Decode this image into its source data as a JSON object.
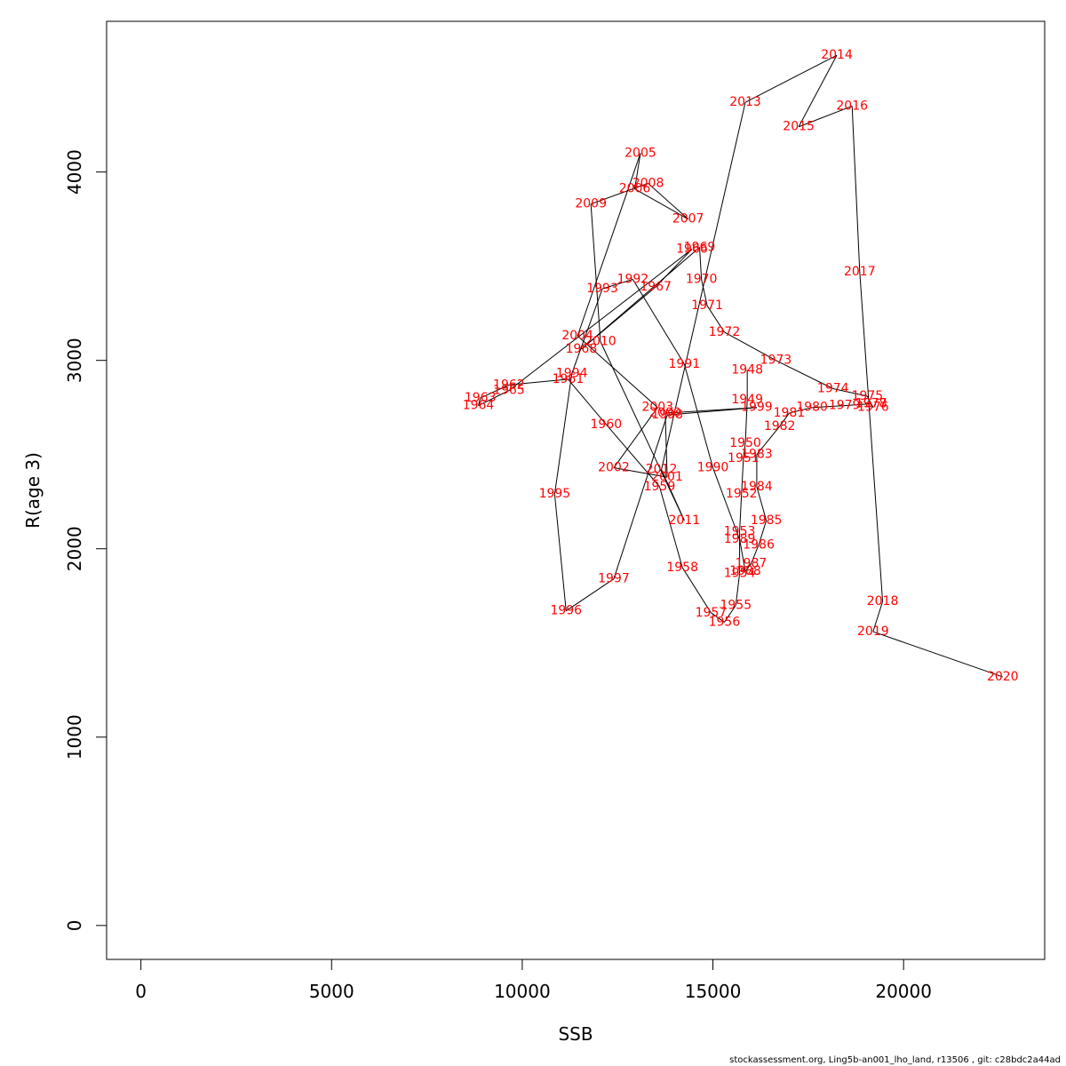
{
  "chart_data": {
    "type": "line",
    "xlabel": "SSB",
    "ylabel": "R(age 3)",
    "xlim": [
      -900,
      23700
    ],
    "ylim": [
      -180,
      4800
    ],
    "x_ticks": [
      0,
      5000,
      10000,
      15000,
      20000
    ],
    "x_tick_labels": [
      "0",
      "5000",
      "10000",
      "15000",
      "20000"
    ],
    "y_ticks": [
      0,
      1000,
      2000,
      3000,
      4000
    ],
    "y_tick_labels": [
      "0",
      "1000",
      "2000",
      "3000",
      "4000"
    ],
    "grid": false,
    "label_color": "#ff0000",
    "line_color": "#000000",
    "points": [
      {
        "year": "1948",
        "x": 15900,
        "y": 2950
      },
      {
        "year": "1949",
        "x": 15900,
        "y": 2790
      },
      {
        "year": "1950",
        "x": 15850,
        "y": 2560
      },
      {
        "year": "1951",
        "x": 15800,
        "y": 2480
      },
      {
        "year": "1952",
        "x": 15750,
        "y": 2290
      },
      {
        "year": "1953",
        "x": 15700,
        "y": 2090
      },
      {
        "year": "1954",
        "x": 15700,
        "y": 1870
      },
      {
        "year": "1955",
        "x": 15600,
        "y": 1700
      },
      {
        "year": "1956",
        "x": 15300,
        "y": 1610
      },
      {
        "year": "1957",
        "x": 14950,
        "y": 1660
      },
      {
        "year": "1958",
        "x": 14200,
        "y": 1900
      },
      {
        "year": "1959",
        "x": 13600,
        "y": 2330
      },
      {
        "year": "1960",
        "x": 12200,
        "y": 2660
      },
      {
        "year": "1961",
        "x": 11200,
        "y": 2900
      },
      {
        "year": "1962",
        "x": 9650,
        "y": 2870
      },
      {
        "year": "1963",
        "x": 8900,
        "y": 2800
      },
      {
        "year": "1964",
        "x": 8850,
        "y": 2760
      },
      {
        "year": "1965",
        "x": 9650,
        "y": 2840
      },
      {
        "year": "1966",
        "x": 14450,
        "y": 3590
      },
      {
        "year": "1967",
        "x": 13500,
        "y": 3390
      },
      {
        "year": "1968",
        "x": 11550,
        "y": 3060
      },
      {
        "year": "1969",
        "x": 14650,
        "y": 3600
      },
      {
        "year": "1970",
        "x": 14700,
        "y": 3430
      },
      {
        "year": "1971",
        "x": 14850,
        "y": 3290
      },
      {
        "year": "1972",
        "x": 15300,
        "y": 3150
      },
      {
        "year": "1973",
        "x": 16650,
        "y": 3000
      },
      {
        "year": "1974",
        "x": 18150,
        "y": 2850
      },
      {
        "year": "1975",
        "x": 19050,
        "y": 2810
      },
      {
        "year": "1976",
        "x": 19200,
        "y": 2750
      },
      {
        "year": "1977",
        "x": 19150,
        "y": 2770
      },
      {
        "year": "1978",
        "x": 19150,
        "y": 2770
      },
      {
        "year": "1979",
        "x": 18450,
        "y": 2760
      },
      {
        "year": "1980",
        "x": 17600,
        "y": 2750
      },
      {
        "year": "1981",
        "x": 17000,
        "y": 2720
      },
      {
        "year": "1982",
        "x": 16750,
        "y": 2650
      },
      {
        "year": "1983",
        "x": 16150,
        "y": 2500
      },
      {
        "year": "1984",
        "x": 16150,
        "y": 2330
      },
      {
        "year": "1985",
        "x": 16400,
        "y": 2150
      },
      {
        "year": "1986",
        "x": 16200,
        "y": 2020
      },
      {
        "year": "1987",
        "x": 16000,
        "y": 1920
      },
      {
        "year": "1988",
        "x": 15850,
        "y": 1880
      },
      {
        "year": "1989",
        "x": 15700,
        "y": 2050
      },
      {
        "year": "1990",
        "x": 15000,
        "y": 2430
      },
      {
        "year": "1991",
        "x": 14250,
        "y": 2980
      },
      {
        "year": "1992",
        "x": 12900,
        "y": 3430
      },
      {
        "year": "1993",
        "x": 12100,
        "y": 3380
      },
      {
        "year": "1994",
        "x": 11300,
        "y": 2930
      },
      {
        "year": "1995",
        "x": 10850,
        "y": 2290
      },
      {
        "year": "1996",
        "x": 11150,
        "y": 1670
      },
      {
        "year": "1997",
        "x": 12400,
        "y": 1840
      },
      {
        "year": "1998",
        "x": 13800,
        "y": 2710
      },
      {
        "year": "1999",
        "x": 16150,
        "y": 2750
      },
      {
        "year": "2000",
        "x": 13750,
        "y": 2720
      },
      {
        "year": "2001",
        "x": 13800,
        "y": 2380
      },
      {
        "year": "2002",
        "x": 12400,
        "y": 2430
      },
      {
        "year": "2003",
        "x": 13550,
        "y": 2750
      },
      {
        "year": "2004",
        "x": 11450,
        "y": 3130
      },
      {
        "year": "2005",
        "x": 13100,
        "y": 4100
      },
      {
        "year": "2006",
        "x": 12950,
        "y": 3910
      },
      {
        "year": "2007",
        "x": 14350,
        "y": 3750
      },
      {
        "year": "2008",
        "x": 13300,
        "y": 3940
      },
      {
        "year": "2009",
        "x": 11800,
        "y": 3830
      },
      {
        "year": "2010",
        "x": 12050,
        "y": 3100
      },
      {
        "year": "2011",
        "x": 14250,
        "y": 2150
      },
      {
        "year": "2012",
        "x": 13650,
        "y": 2420
      },
      {
        "year": "2013",
        "x": 15850,
        "y": 4370
      },
      {
        "year": "2014",
        "x": 18250,
        "y": 4620
      },
      {
        "year": "2015",
        "x": 17250,
        "y": 4240
      },
      {
        "year": "2016",
        "x": 18650,
        "y": 4350
      },
      {
        "year": "2017",
        "x": 18850,
        "y": 3470
      },
      {
        "year": "2018",
        "x": 19450,
        "y": 1720
      },
      {
        "year": "2019",
        "x": 19200,
        "y": 1560
      },
      {
        "year": "2020",
        "x": 22600,
        "y": 1320
      }
    ]
  },
  "footer": {
    "text": "stockassessment.org, Ling5b-an001_lho_land, r13506 , git: c28bdc2a44ad"
  }
}
